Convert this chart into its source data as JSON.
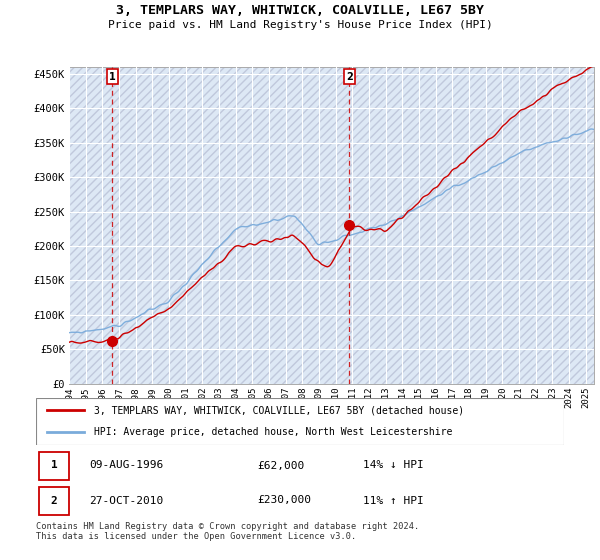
{
  "title": "3, TEMPLARS WAY, WHITWICK, COALVILLE, LE67 5BY",
  "subtitle": "Price paid vs. HM Land Registry's House Price Index (HPI)",
  "y_ticks": [
    0,
    50000,
    100000,
    150000,
    200000,
    250000,
    300000,
    350000,
    400000,
    450000
  ],
  "y_labels": [
    "£0",
    "£50K",
    "£100K",
    "£150K",
    "£200K",
    "£250K",
    "£300K",
    "£350K",
    "£400K",
    "£450K"
  ],
  "ylim": [
    0,
    460000
  ],
  "xlim_start": 1994.0,
  "xlim_end": 2025.5,
  "purchase1_date": 1996.6,
  "purchase1_price": 62000,
  "purchase2_date": 2010.82,
  "purchase2_price": 230000,
  "legend_line1": "3, TEMPLARS WAY, WHITWICK, COALVILLE, LE67 5BY (detached house)",
  "legend_line2": "HPI: Average price, detached house, North West Leicestershire",
  "table_row1_num": "1",
  "table_row1_date": "09-AUG-1996",
  "table_row1_price": "£62,000",
  "table_row1_hpi": "14% ↓ HPI",
  "table_row2_num": "2",
  "table_row2_date": "27-OCT-2010",
  "table_row2_price": "£230,000",
  "table_row2_hpi": "11% ↑ HPI",
  "footer": "Contains HM Land Registry data © Crown copyright and database right 2024.\nThis data is licensed under the Open Government Licence v3.0.",
  "hpi_color": "#7aabdb",
  "price_color": "#cc0000",
  "grid_color": "#ccccdd",
  "annotation_box_color": "#cc0000",
  "plot_bg_color": "#dde8f5",
  "hatch_color": "#c0c8dc"
}
